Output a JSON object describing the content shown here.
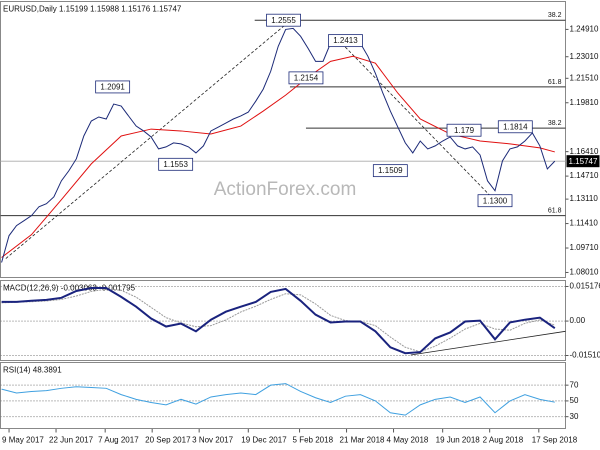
{
  "chart_data": [
    {
      "type": "price",
      "title": "EURUSD,Daily  1.15199 1.15988 1.15176 1.15747",
      "watermark": "ActionForex.com",
      "x": [
        "2017-05-02",
        "2017-05-09",
        "2017-05-16",
        "2017-05-23",
        "2017-05-30",
        "2017-06-06",
        "2017-06-13",
        "2017-06-20",
        "2017-06-27",
        "2017-07-04",
        "2017-07-11",
        "2017-07-18",
        "2017-07-25",
        "2017-08-01",
        "2017-08-08",
        "2017-08-15",
        "2017-08-22",
        "2017-08-29",
        "2017-09-05",
        "2017-09-12",
        "2017-09-19",
        "2017-09-26",
        "2017-10-03",
        "2017-10-10",
        "2017-10-17",
        "2017-10-24",
        "2017-10-31",
        "2017-11-07",
        "2017-11-14",
        "2017-11-21",
        "2017-11-28",
        "2017-12-05",
        "2017-12-12",
        "2017-12-19",
        "2017-12-26",
        "2018-01-02",
        "2018-01-09",
        "2018-01-16",
        "2018-01-23",
        "2018-01-30",
        "2018-02-06",
        "2018-02-13",
        "2018-02-20",
        "2018-02-27",
        "2018-03-06",
        "2018-03-13",
        "2018-03-20",
        "2018-03-27",
        "2018-04-03",
        "2018-04-10",
        "2018-04-17",
        "2018-04-24",
        "2018-05-01",
        "2018-05-08",
        "2018-05-15",
        "2018-05-22",
        "2018-05-29",
        "2018-06-05",
        "2018-06-12",
        "2018-06-19",
        "2018-06-26",
        "2018-07-03",
        "2018-07-10",
        "2018-07-17",
        "2018-07-24",
        "2018-07-31",
        "2018-08-07",
        "2018-08-14",
        "2018-08-21",
        "2018-08-28",
        "2018-09-04",
        "2018-09-11",
        "2018-09-18",
        "2018-09-25",
        "2018-10-02"
      ],
      "values": [
        1.087,
        1.1057,
        1.1127,
        1.1161,
        1.1196,
        1.1258,
        1.1279,
        1.1327,
        1.1438,
        1.1508,
        1.1591,
        1.175,
        1.1854,
        1.1882,
        1.1868,
        1.1972,
        1.1958,
        1.1888,
        1.1819,
        1.1785,
        1.1743,
        1.166,
        1.1674,
        1.1702,
        1.1695,
        1.1674,
        1.1632,
        1.1681,
        1.1785,
        1.1812,
        1.184,
        1.1868,
        1.1889,
        1.1916,
        1.1992,
        1.2076,
        1.22,
        1.2373,
        1.2491,
        1.2498,
        1.2443,
        1.2359,
        1.2269,
        1.2269,
        1.2394,
        1.2408,
        1.2394,
        1.2373,
        1.2394,
        1.2304,
        1.2186,
        1.2048,
        1.1923,
        1.1812,
        1.1702,
        1.1632,
        1.1715,
        1.166,
        1.1681,
        1.1715,
        1.1743,
        1.1681,
        1.166,
        1.1674,
        1.1618,
        1.1438,
        1.1369,
        1.1577,
        1.166,
        1.1674,
        1.1715,
        1.1771,
        1.1681,
        1.1521,
        1.1575
      ],
      "color": "#1c2a78",
      "moving_average": {
        "color": "#e01010",
        "x": [
          "2017-05-02",
          "2017-05-30",
          "2017-06-27",
          "2017-07-25",
          "2017-08-22",
          "2017-09-19",
          "2017-10-17",
          "2017-11-14",
          "2017-12-12",
          "2018-01-02",
          "2018-01-23",
          "2018-02-13",
          "2018-03-06",
          "2018-03-27",
          "2018-04-17",
          "2018-05-08",
          "2018-05-29",
          "2018-06-26",
          "2018-07-24",
          "2018-08-21",
          "2018-09-18",
          "2018-10-02"
        ],
        "values": [
          1.0905,
          1.1064,
          1.1307,
          1.1556,
          1.175,
          1.1798,
          1.1785,
          1.1764,
          1.1819,
          1.1923,
          1.2034,
          1.2159,
          1.2269,
          1.2304,
          1.2256,
          1.2048,
          1.1868,
          1.1764,
          1.1715,
          1.1695,
          1.1667,
          1.1639
        ]
      },
      "annotations": [
        {
          "x": "2018-01-21",
          "value": 1.2555
        },
        {
          "x": "2018-03-20",
          "value": 1.2413
        },
        {
          "x": "2018-02-11",
          "value": 1.2154
        },
        {
          "x": "2017-08-14",
          "value": 1.2091
        },
        {
          "x": "2017-10-12",
          "value": 1.1553
        },
        {
          "x": "2018-05-01",
          "value": 1.1509
        },
        {
          "x": "2018-07-09",
          "value": 1.179
        },
        {
          "x": "2018-08-26",
          "value": 1.1814
        },
        {
          "x": "2018-08-07",
          "value": 1.13,
          "label": "1.1300"
        }
      ],
      "fib_levels": [
        {
          "ratio": 38.2,
          "value": 1.2555,
          "from": "2017-12-25"
        },
        {
          "ratio": 61.8,
          "value": 1.2091,
          "from": "2018-01-27"
        },
        {
          "ratio": 38.2,
          "value": 1.1805,
          "from": "2018-02-11"
        },
        {
          "ratio": 61.8,
          "value": 1.1196,
          "from": "2017-05-01"
        }
      ],
      "trend_lines": [
        {
          "x": [
            "2017-05-06",
            "2018-02-01"
          ],
          "values": [
            1.0898,
            1.2581
          ]
        },
        {
          "x": [
            "2018-03-10",
            "2018-08-07"
          ],
          "values": [
            1.2443,
            1.13
          ]
        }
      ],
      "current_price": 1.15747,
      "xlim": [
        "2017-05-01",
        "2018-10-12"
      ],
      "xticks": [
        {
          "value": "2017-05-09",
          "label": "9 May 2017"
        },
        {
          "value": "2017-06-22",
          "label": "22 Jun 2017"
        },
        {
          "value": "2017-08-07",
          "label": "7 Aug 2017"
        },
        {
          "value": "2017-09-20",
          "label": "20 Sep 2017"
        },
        {
          "value": "2017-11-03",
          "label": "3 Nov 2017"
        },
        {
          "value": "2017-12-19",
          "label": "19 Dec 2017"
        },
        {
          "value": "2018-02-05",
          "label": "5 Feb 2018"
        },
        {
          "value": "2018-03-21",
          "label": "21 Mar 2018"
        },
        {
          "value": "2018-05-04",
          "label": "4 May 2018"
        },
        {
          "value": "2018-06-19",
          "label": "19 Jun 2018"
        },
        {
          "value": "2018-08-02",
          "label": "2 Aug 2018"
        },
        {
          "value": "2018-09-17",
          "label": "17 Sep 2018"
        }
      ],
      "ylim": [
        1.0766,
        1.2685
      ],
      "yticks": [
        {
          "value": 1.2491,
          "label": "1.24910"
        },
        {
          "value": 1.2301,
          "label": "1.23010"
        },
        {
          "value": 1.2151,
          "label": "1.21510"
        },
        {
          "value": 1.1981,
          "label": "1.19810"
        },
        {
          "value": 1.1641,
          "label": "1.16410"
        },
        {
          "value": 1.1471,
          "label": "1.14710"
        },
        {
          "value": 1.1311,
          "label": "1.13110"
        },
        {
          "value": 1.1141,
          "label": "1.11410"
        },
        {
          "value": 1.0971,
          "label": "1.09710"
        },
        {
          "value": 1.0801,
          "label": "1.08010"
        }
      ],
      "grid": false
    },
    {
      "type": "macd",
      "title": "MACD(12,26,9) -0.003063 -0.001795",
      "x": [
        "2017-05-02",
        "2017-05-16",
        "2017-05-30",
        "2017-06-13",
        "2017-06-27",
        "2017-07-11",
        "2017-07-25",
        "2017-08-08",
        "2017-08-22",
        "2017-09-05",
        "2017-09-19",
        "2017-10-03",
        "2017-10-17",
        "2017-10-31",
        "2017-11-14",
        "2017-11-28",
        "2017-12-12",
        "2017-12-26",
        "2018-01-09",
        "2018-01-23",
        "2018-02-06",
        "2018-02-20",
        "2018-03-06",
        "2018-03-20",
        "2018-04-03",
        "2018-04-17",
        "2018-05-01",
        "2018-05-15",
        "2018-05-29",
        "2018-06-12",
        "2018-06-26",
        "2018-07-10",
        "2018-07-24",
        "2018-08-07",
        "2018-08-21",
        "2018-09-04",
        "2018-09-18",
        "2018-10-02"
      ],
      "series": [
        {
          "color": "#1a237e",
          "values": [
            0.0084,
            0.0084,
            0.0089,
            0.0093,
            0.0102,
            0.0132,
            0.0145,
            0.0145,
            0.0106,
            0.0063,
            0.0011,
            -0.0024,
            -0.0011,
            -0.0045,
            0.0006,
            0.0041,
            0.0063,
            0.0084,
            0.0128,
            0.0141,
            0.0089,
            0.0028,
            -0.0006,
            -0.0002,
            -0.0002,
            -0.0045,
            -0.0115,
            -0.0141,
            -0.0136,
            -0.0076,
            -0.005,
            -0.0002,
            0.0002,
            -0.008,
            -0.0006,
            0.0006,
            0.0015,
            -0.0031
          ]
        },
        {
          "color": "#9a9a9a",
          "values": [
            0.008,
            0.0083,
            0.0085,
            0.0088,
            0.0095,
            0.011,
            0.013,
            0.014,
            0.0135,
            0.0105,
            0.006,
            0.0015,
            -0.0008,
            -0.0025,
            -0.002,
            0.0005,
            0.004,
            0.0065,
            0.0095,
            0.012,
            0.0115,
            0.0075,
            0.0025,
            0.0002,
            -0.0002,
            -0.002,
            -0.007,
            -0.0115,
            -0.0135,
            -0.011,
            -0.0075,
            -0.0035,
            -0.001,
            -0.0035,
            -0.004,
            -0.001,
            0.0005,
            -0.0018
          ]
        }
      ],
      "trend_lines": [
        {
          "x": [
            "2018-05-20",
            "2018-10-12"
          ],
          "values": [
            -0.0149,
            -0.0045
          ]
        }
      ],
      "xlim": [
        "2017-05-01",
        "2018-10-12"
      ],
      "ylim": [
        -0.0173,
        0.0178
      ],
      "yticks": [
        0.015176,
        {
          "value": 0,
          "label": "0.00"
        },
        -0.015109
      ],
      "grid": true
    },
    {
      "type": "rsi",
      "title": "RSI(14) 48.3891",
      "x": [
        "2017-05-02",
        "2017-05-16",
        "2017-05-30",
        "2017-06-13",
        "2017-06-27",
        "2017-07-11",
        "2017-07-25",
        "2017-08-08",
        "2017-08-22",
        "2017-09-05",
        "2017-09-19",
        "2017-10-03",
        "2017-10-17",
        "2017-10-31",
        "2017-11-14",
        "2017-11-28",
        "2017-12-12",
        "2017-12-26",
        "2018-01-09",
        "2018-01-23",
        "2018-02-06",
        "2018-02-20",
        "2018-03-06",
        "2018-03-20",
        "2018-04-03",
        "2018-04-17",
        "2018-05-01",
        "2018-05-15",
        "2018-05-29",
        "2018-06-12",
        "2018-06-26",
        "2018-07-10",
        "2018-07-24",
        "2018-08-07",
        "2018-08-21",
        "2018-09-04",
        "2018-09-18",
        "2018-10-02"
      ],
      "values": [
        65,
        60,
        62,
        63,
        66,
        68,
        67,
        66,
        58,
        52,
        48,
        45,
        52,
        46,
        55,
        58,
        60,
        58,
        70,
        72,
        62,
        54,
        48,
        56,
        58,
        50,
        35,
        32,
        45,
        52,
        55,
        48,
        55,
        35,
        50,
        58,
        52,
        48.39
      ],
      "color": "#3fa0e0",
      "xlim": [
        "2017-05-01",
        "2018-10-12"
      ],
      "ylim": [
        15,
        98.75
      ],
      "yticks": [
        70,
        50,
        30
      ],
      "grid": true
    }
  ]
}
